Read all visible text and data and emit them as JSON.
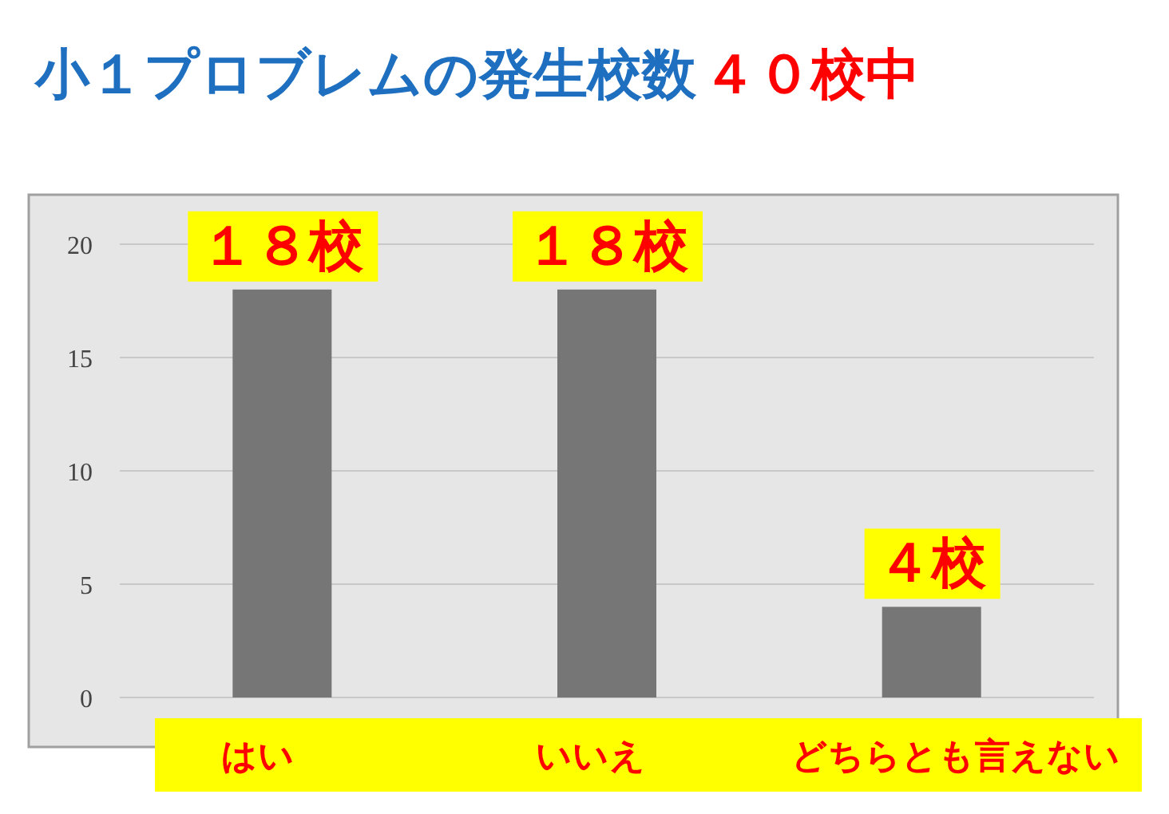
{
  "chart_data": {
    "type": "bar",
    "title": "小１プロブレムの発生校数",
    "annotations": [
      "４０校中"
    ],
    "categories": [
      "はい",
      "いいえ",
      "どちらとも言えない"
    ],
    "values": [
      18,
      18,
      4
    ],
    "value_labels": [
      "１８校",
      "１８校",
      "４校"
    ],
    "color": "#767676",
    "ylim": [
      0,
      20
    ],
    "yticks": [
      0,
      5,
      10,
      15,
      20
    ],
    "grid": "y"
  }
}
